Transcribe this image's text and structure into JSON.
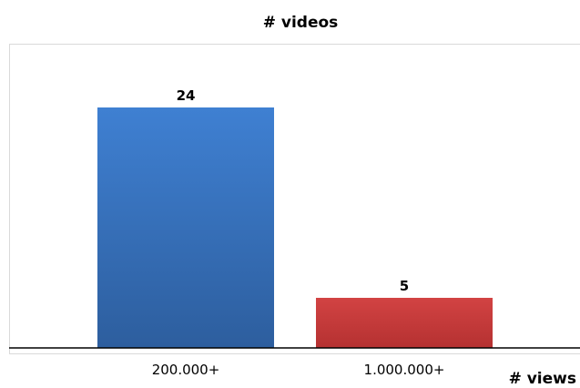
{
  "chart_data": {
    "type": "bar",
    "title": "# videos",
    "xlabel": "# views",
    "ylabel": "",
    "categories": [
      "200.000+",
      "1.000.000+"
    ],
    "values": [
      24,
      5
    ],
    "ylim": [
      0,
      30
    ],
    "grid": false,
    "legend": "none",
    "bar_colors": [
      "#3d78c8",
      "#c83a3a"
    ]
  }
}
